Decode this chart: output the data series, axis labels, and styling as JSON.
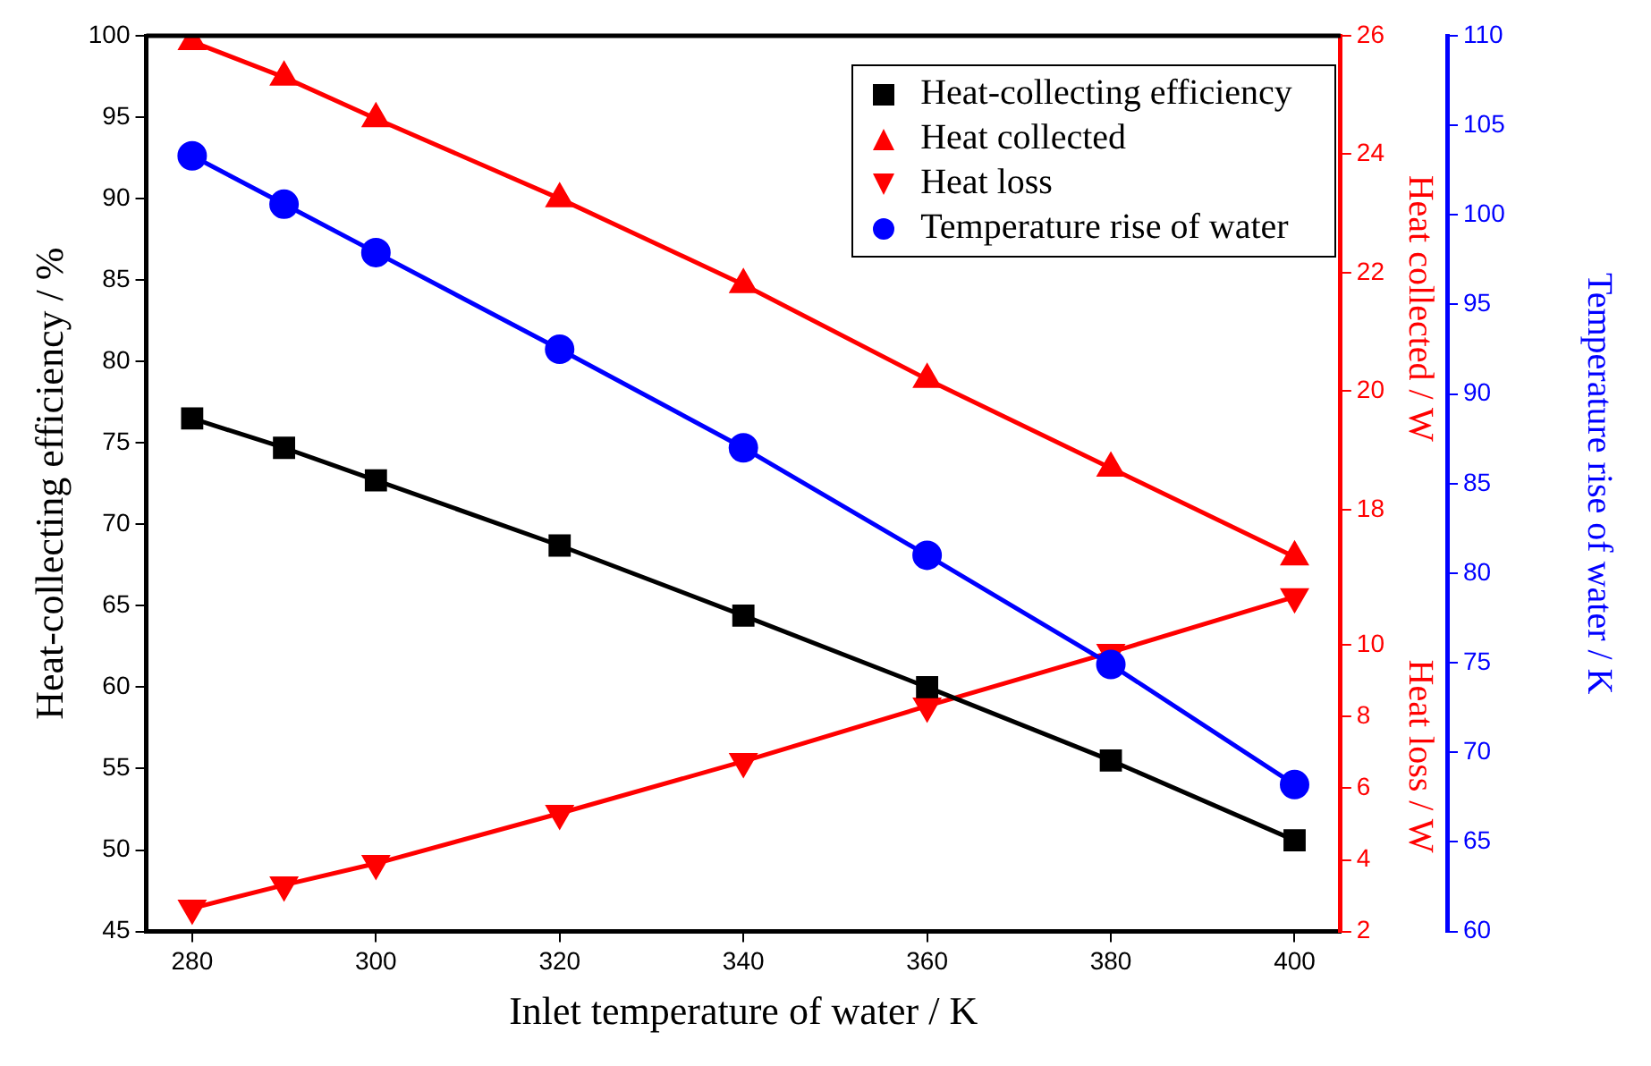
{
  "chart_data": [
    {
      "type": "line",
      "xlabel": "Inlet temperature of water / K",
      "ylabel": "Heat-collecting efficiency / %",
      "y2label": "Heat collected / W",
      "y3label": "Heat loss / W",
      "x": [
        280,
        290,
        300,
        320,
        340,
        360,
        380,
        400
      ],
      "xlim": [
        275,
        405
      ],
      "xticks": [
        280,
        300,
        320,
        340,
        360,
        380,
        400
      ],
      "ylim": [
        45,
        100
      ],
      "yticks": [
        45,
        50,
        55,
        60,
        65,
        70,
        75,
        80,
        85,
        90,
        95,
        100
      ],
      "y2lim": [
        16.8,
        26
      ],
      "y2ticks": [
        18,
        20,
        22,
        24,
        26
      ],
      "y3lim": [
        2,
        11.8
      ],
      "y3ticks": [
        2,
        4,
        6,
        8,
        10
      ],
      "series": [
        {
          "name": "Heat-collecting efficiency",
          "color": "#000000",
          "marker": "square",
          "values": [
            76.5,
            74.7,
            72.7,
            68.7,
            64.4,
            60.0,
            55.5,
            50.6
          ]
        },
        {
          "name": "Heat collected",
          "color": "#ff0000",
          "marker": "triangle",
          "axis": "y2",
          "values": [
            25.9,
            25.3,
            24.6,
            23.25,
            21.8,
            20.2,
            18.7,
            17.2
          ]
        },
        {
          "name": "Heat loss",
          "color": "#ff0000",
          "marker": "triangle_down",
          "axis": "y3",
          "values": [
            2.65,
            3.3,
            3.9,
            5.3,
            6.75,
            8.3,
            9.8,
            11.35
          ]
        }
      ],
      "legend": "top right",
      "grid": false,
      "line_style": "solid"
    },
    {
      "type": "line",
      "ylabel": "Temperature rise of water / K",
      "x": [
        280,
        290,
        300,
        320,
        340,
        360,
        380,
        400
      ],
      "xlim": [
        275,
        405
      ],
      "ylim": [
        60,
        110
      ],
      "yticks": [
        60,
        65,
        70,
        75,
        80,
        85,
        90,
        95,
        100,
        105,
        110
      ],
      "series": [
        {
          "name": "Temperature rise of water",
          "color": "#0000ff",
          "marker": "circle",
          "values": [
            103.3,
            100.6,
            97.9,
            92.5,
            87.0,
            81.0,
            74.9,
            68.2
          ]
        }
      ],
      "tick_labels": "y",
      "grid": false,
      "line_style": "solid"
    }
  ]
}
